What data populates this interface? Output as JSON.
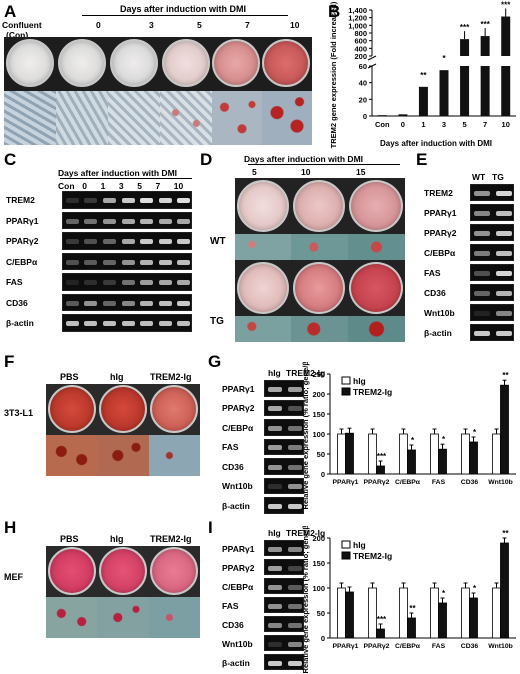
{
  "panels": {
    "A": "A",
    "B": "B",
    "C": "C",
    "D": "D",
    "E": "E",
    "F": "F",
    "G": "G",
    "H": "H",
    "I": "I"
  },
  "panelA": {
    "confluent": "Confluent",
    "con": "(Con)",
    "days_header": "Days after induction with DMI",
    "days": [
      "0",
      "3",
      "5",
      "7",
      "10"
    ]
  },
  "panelB": {
    "chart_data": {
      "type": "bar",
      "ylabel": "TREM2 gene expression (Fold increased)",
      "xlabel": "Days after induction with DMI",
      "categories": [
        "Con",
        "0",
        "1",
        "3",
        "5",
        "7",
        "10"
      ],
      "values": [
        1,
        2,
        35,
        55,
        640,
        720,
        1230
      ],
      "significance": [
        "",
        "",
        "**",
        "*",
        "***",
        "***",
        "***"
      ],
      "yticks_lower": [
        "0",
        "20",
        "40",
        "60"
      ],
      "yticks_upper": [
        "200",
        "400",
        "600",
        "800",
        "1,000",
        "1,200",
        "1,400"
      ]
    }
  },
  "panelC": {
    "days_header": "Days after induction with DMI",
    "lanes": [
      "Con",
      "0",
      "1",
      "3",
      "5",
      "7",
      "10"
    ],
    "genes": [
      "TREM2",
      "PPARγ1",
      "PPARγ2",
      "C/EBPα",
      "FAS",
      "CD36",
      "β-actin"
    ]
  },
  "panelD": {
    "days_header": "Days after induction with DMI",
    "days": [
      "5",
      "10",
      "15"
    ],
    "wt": "WT",
    "tg": "TG"
  },
  "panelE": {
    "lanes": [
      "WT",
      "TG"
    ],
    "genes": [
      "TREM2",
      "PPARγ1",
      "PPARγ2",
      "C/EBPα",
      "FAS",
      "CD36",
      "Wnt10b",
      "β-actin"
    ]
  },
  "panelF": {
    "groups": [
      "PBS",
      "hIg",
      "TREM2-Ig"
    ],
    "cell": "3T3-L1"
  },
  "panelG": {
    "lanes": [
      "hIg",
      "TREM2-Ig"
    ],
    "genes": [
      "PPARγ1",
      "PPARγ2",
      "C/EBPα",
      "FAS",
      "CD36",
      "Wnt10b",
      "β-actin"
    ],
    "chart_data": {
      "type": "bar",
      "ylabel": "Relative gene expression (% ratio; gene/β-actin)",
      "categories": [
        "PPARγ1",
        "PPARγ2",
        "C/EBPα",
        "FAS",
        "CD36",
        "Wnt10b"
      ],
      "series": [
        {
          "name": "hIg",
          "values": [
            100,
            100,
            100,
            100,
            100,
            100
          ]
        },
        {
          "name": "TREM2-Ig",
          "values": [
            102,
            20,
            60,
            62,
            80,
            222
          ]
        }
      ],
      "significance": [
        "",
        "***",
        "*",
        "*",
        "*",
        "**"
      ],
      "yticks": [
        "0",
        "50",
        "100",
        "150",
        "200",
        "250"
      ],
      "ylim": [
        0,
        250
      ]
    }
  },
  "panelH": {
    "groups": [
      "PBS",
      "hIg",
      "TREM2-Ig"
    ],
    "cell": "MEF"
  },
  "panelI": {
    "lanes": [
      "hIg",
      "TREM2-Ig"
    ],
    "genes": [
      "PPARγ1",
      "PPARγ2",
      "C/EBPα",
      "FAS",
      "CD36",
      "Wnt10b",
      "β-actin"
    ],
    "chart_data": {
      "type": "bar",
      "ylabel": "Relative gene expression (% ratio; gene/β-actin)",
      "categories": [
        "PPARγ1",
        "PPARγ2",
        "C/EBPα",
        "FAS",
        "CD36",
        "Wnt10b"
      ],
      "series": [
        {
          "name": "hIg",
          "values": [
            100,
            100,
            100,
            100,
            100,
            100
          ]
        },
        {
          "name": "TREM2-Ig",
          "values": [
            92,
            18,
            40,
            70,
            80,
            190
          ]
        }
      ],
      "significance": [
        "",
        "***",
        "**",
        "*",
        "*",
        "**"
      ],
      "yticks": [
        "0",
        "50",
        "100",
        "150",
        "200"
      ],
      "ylim": [
        0,
        200
      ]
    }
  }
}
